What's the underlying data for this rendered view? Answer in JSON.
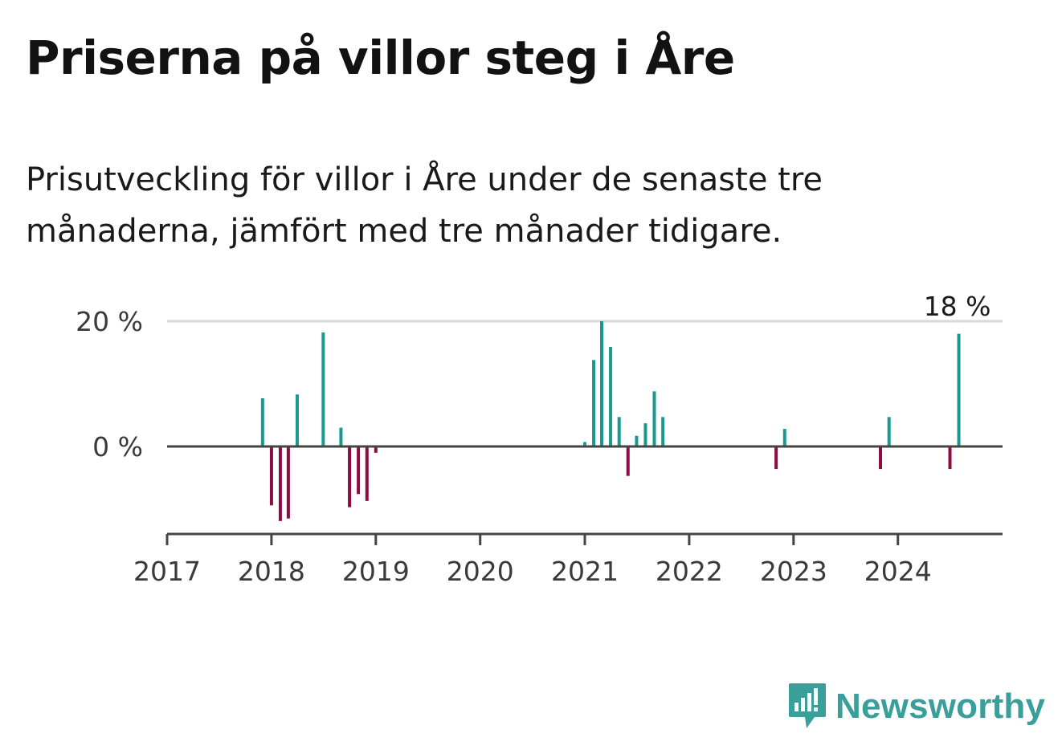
{
  "title": "Priserna på villor steg i Åre",
  "subtitle": "Prisutveckling för villor i Åre under de senaste tre månaderna, jämfört med tre månader tidigare.",
  "brand": {
    "name": "Newsworthy",
    "icon": "newsworthy-logo-icon",
    "color": "#3a9e9a"
  },
  "colors": {
    "positive": "#1a9a8e",
    "negative": "#8e0c45",
    "axis": "#444444",
    "grid": "#d9d9d9"
  },
  "chart_data": {
    "type": "bar",
    "title": "Priserna på villor steg i Åre",
    "xlabel": "",
    "ylabel": "",
    "ylim": [
      -14,
      20
    ],
    "xlim": [
      "2017-01-01",
      "2024-12-31"
    ],
    "y_ticks": [
      {
        "value": 0,
        "label": "0 %"
      },
      {
        "value": 20,
        "label": "20 %"
      }
    ],
    "x_ticks": [
      "2017",
      "2018",
      "2019",
      "2020",
      "2021",
      "2022",
      "2023",
      "2024"
    ],
    "grid": "horizontal at 20 %",
    "annotation": {
      "date": "2024-08-01",
      "value": 18,
      "label": "18 %"
    },
    "dates": [
      "2017-12-01",
      "2018-01-01",
      "2018-02-01",
      "2018-03-01",
      "2018-04-01",
      "2018-07-01",
      "2018-09-01",
      "2018-10-01",
      "2018-11-01",
      "2018-12-01",
      "2019-01-01",
      "2021-01-01",
      "2021-02-01",
      "2021-03-01",
      "2021-04-01",
      "2021-05-01",
      "2021-06-01",
      "2021-07-01",
      "2021-08-01",
      "2021-09-01",
      "2021-10-01",
      "2022-11-01",
      "2022-12-01",
      "2023-11-01",
      "2023-12-01",
      "2024-07-01",
      "2024-08-01"
    ],
    "values": [
      7.7,
      -9.4,
      -11.9,
      -11.5,
      8.3,
      18.2,
      3.0,
      -9.7,
      -7.6,
      -8.7,
      -1.0,
      0.7,
      13.8,
      20.0,
      15.9,
      4.7,
      -4.7,
      1.7,
      3.7,
      8.8,
      4.7,
      -3.6,
      2.8,
      -3.6,
      4.7,
      -3.6,
      18.0
    ]
  }
}
